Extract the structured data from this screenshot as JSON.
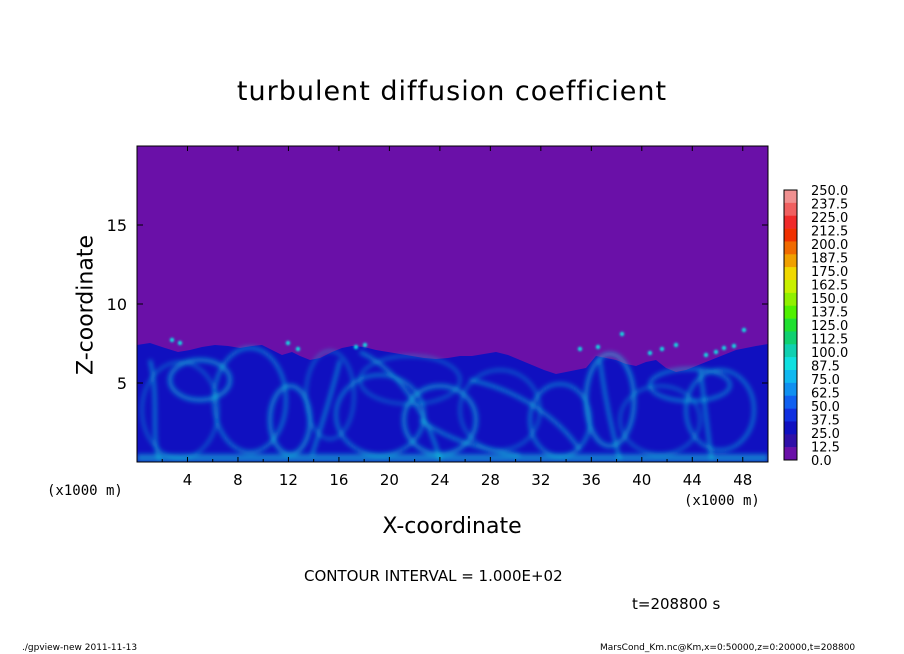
{
  "chart_data": {
    "type": "heatmap",
    "title": "turbulent diffusion coefficient",
    "xlabel": "X-coordinate",
    "ylabel": "Z-coordinate",
    "x_unit_left": "(x1000 m)",
    "x_unit_right": "(x1000 m)",
    "xlim": [
      0,
      50
    ],
    "ylim": [
      0,
      20
    ],
    "x_ticks": [
      "4",
      "8",
      "12",
      "16",
      "20",
      "24",
      "28",
      "32",
      "36",
      "40",
      "44",
      "48"
    ],
    "x_tick_values": [
      4,
      8,
      12,
      16,
      20,
      24,
      28,
      32,
      36,
      40,
      44,
      48
    ],
    "y_ticks": [
      "5",
      "10",
      "15"
    ],
    "y_tick_values": [
      5,
      10,
      15
    ],
    "colorbar": {
      "labels": [
        "250.0",
        "237.5",
        "225.0",
        "212.5",
        "200.0",
        "187.5",
        "175.0",
        "162.5",
        "150.0",
        "137.5",
        "125.0",
        "112.5",
        "100.0",
        "87.5",
        "75.0",
        "62.5",
        "50.0",
        "37.5",
        "25.0",
        "12.5",
        "0.0"
      ],
      "colors": [
        "#f09090",
        "#f06060",
        "#f02a2a",
        "#f03000",
        "#f06a00",
        "#f0a000",
        "#f0d800",
        "#c8f000",
        "#90f000",
        "#50f000",
        "#20e030",
        "#10d070",
        "#10d0b0",
        "#10e0e0",
        "#10b8f0",
        "#1090f0",
        "#1060f0",
        "#1030e0",
        "#1010c0",
        "#3010a8",
        "#6a10a8"
      ]
    },
    "background_color": "#6a10a8",
    "field_color_low": "#1010c0",
    "field_color_high": "#10e0e0"
  },
  "contour_interval": "CONTOUR INTERVAL = 1.000E+02",
  "time_label": "t=208800 s",
  "footer_left": "./gpview-new  2011-11-13",
  "footer_right": "MarsCond_Km.nc@Km,x=0:50000,z=0:20000,t=208800"
}
